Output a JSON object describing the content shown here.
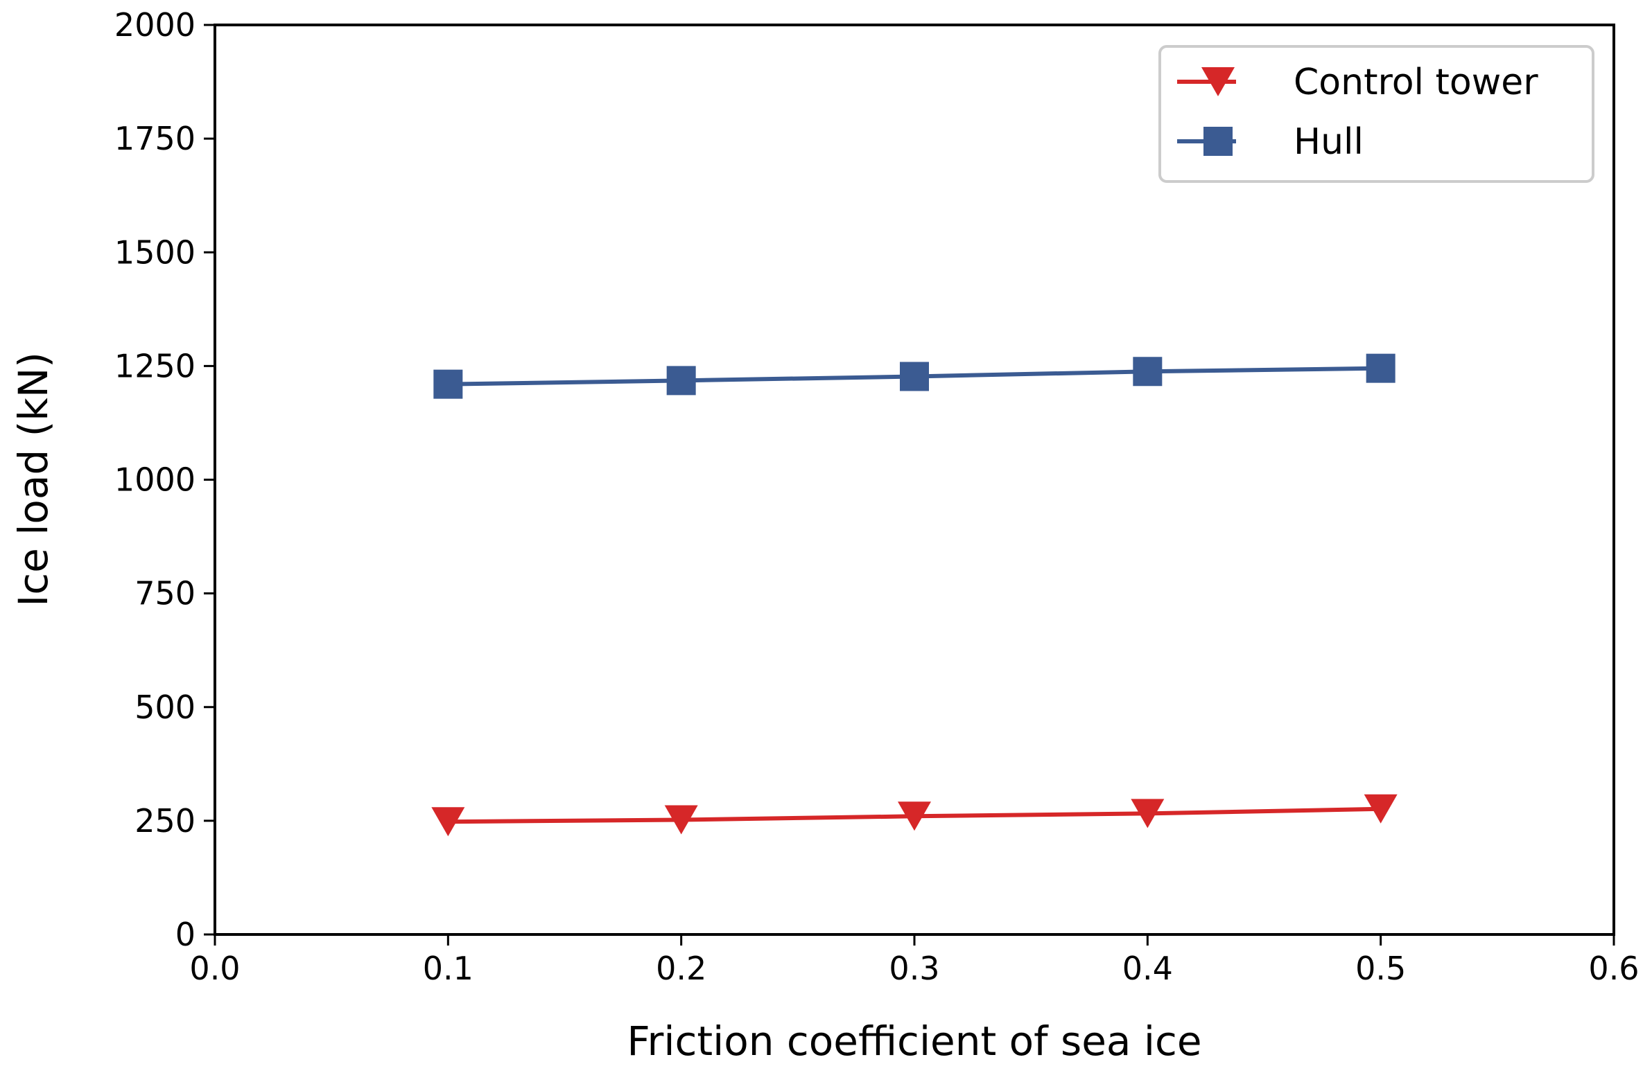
{
  "chart_data": {
    "type": "line",
    "title": "",
    "xlabel": "Friction coefficient of sea ice",
    "ylabel": "Ice load (kN)",
    "xlim": [
      0.0,
      0.6
    ],
    "ylim": [
      0,
      2000
    ],
    "xticks": [
      "0.0",
      "0.1",
      "0.2",
      "0.3",
      "0.4",
      "0.5",
      "0.6"
    ],
    "yticks": [
      "0",
      "250",
      "500",
      "750",
      "1000",
      "1250",
      "1500",
      "1750",
      "2000"
    ],
    "grid": false,
    "legend_position": "top-right",
    "x": [
      0.1,
      0.2,
      0.3,
      0.4,
      0.5
    ],
    "series": [
      {
        "name": "Control tower",
        "values": [
          248,
          252,
          260,
          266,
          276
        ],
        "color": "#d62728",
        "marker": "triangle-down"
      },
      {
        "name": "Hull",
        "values": [
          1210,
          1218,
          1227,
          1238,
          1245
        ],
        "color": "#3b5b92",
        "marker": "square"
      }
    ]
  }
}
